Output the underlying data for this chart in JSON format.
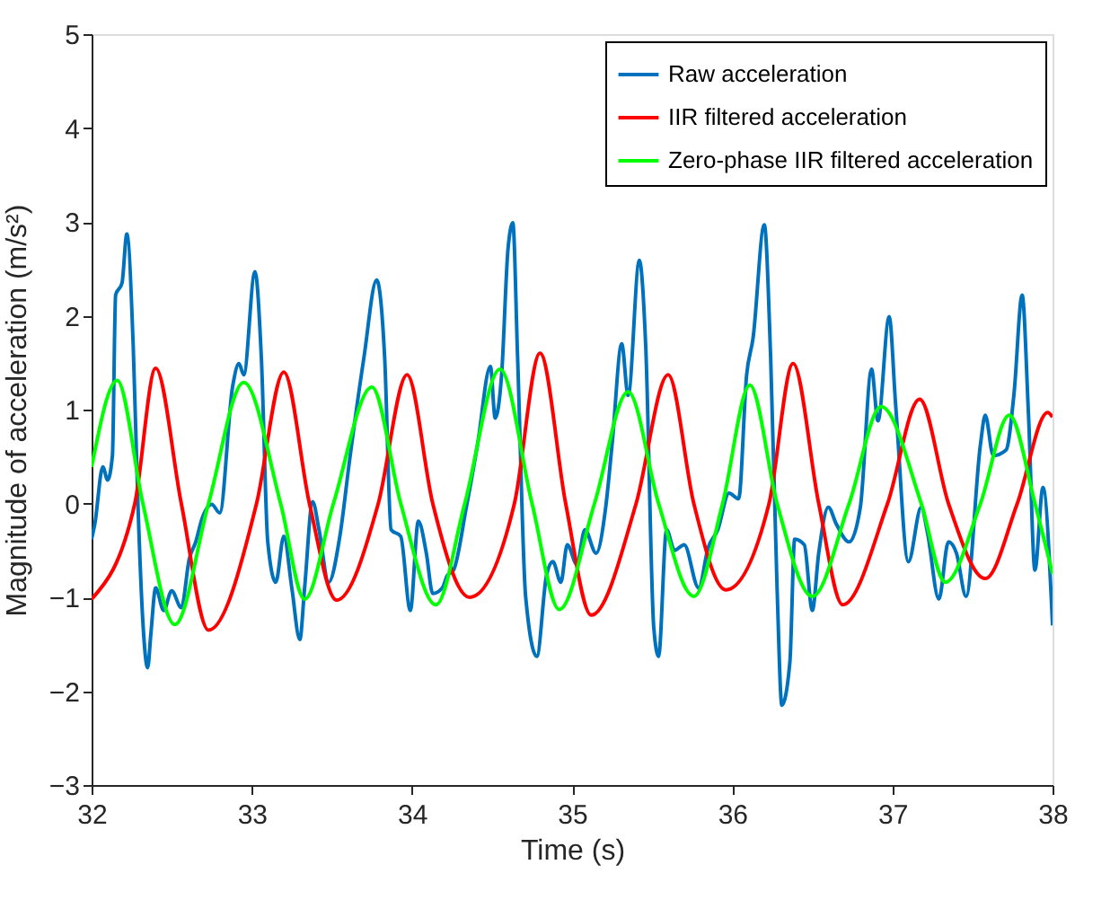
{
  "chart_data": {
    "type": "line",
    "xlabel": "Time (s)",
    "ylabel": "Magnitude of acceleration (m/s²)",
    "xlim": [
      32,
      38
    ],
    "xticks": [
      32,
      33,
      34,
      35,
      36,
      37,
      38
    ],
    "ylim": [
      -3,
      5
    ],
    "yticks": [
      -3,
      -2,
      -1,
      0,
      1,
      2,
      3,
      4,
      5
    ],
    "grid": false,
    "legend": "top right",
    "marker": "none",
    "line_style": "solid",
    "series": [
      {
        "name": "Raw acceleration",
        "color": "#0072bd",
        "x": [
          32.0,
          32.02,
          32.07,
          32.1,
          32.13,
          32.15,
          32.19,
          32.22,
          32.26,
          32.29,
          32.32,
          32.35,
          32.37,
          32.4,
          32.45,
          32.5,
          32.56,
          32.61,
          32.65,
          32.69,
          32.75,
          32.8,
          32.88,
          32.92,
          32.95,
          33.02,
          33.06,
          33.1,
          33.15,
          33.2,
          33.25,
          33.3,
          33.33,
          33.38,
          33.42,
          33.48,
          33.55,
          33.61,
          33.7,
          33.78,
          33.83,
          33.87,
          33.93,
          33.99,
          34.04,
          34.09,
          34.13,
          34.19,
          34.22,
          34.26,
          34.34,
          34.41,
          34.49,
          34.52,
          34.56,
          34.6,
          34.63,
          34.66,
          34.71,
          34.78,
          34.84,
          34.88,
          34.93,
          34.97,
          35.03,
          35.08,
          35.15,
          35.21,
          35.25,
          35.31,
          35.35,
          35.42,
          35.46,
          35.51,
          35.54,
          35.59,
          35.64,
          35.7,
          35.79,
          35.85,
          35.91,
          35.98,
          36.04,
          36.09,
          36.13,
          36.2,
          36.24,
          36.28,
          36.31,
          36.36,
          36.39,
          36.45,
          36.5,
          36.54,
          36.6,
          36.65,
          36.73,
          36.8,
          36.87,
          36.91,
          36.98,
          37.02,
          37.1,
          37.18,
          37.22,
          37.29,
          37.35,
          37.4,
          37.46,
          37.55,
          37.58,
          37.63,
          37.71,
          37.76,
          37.81,
          37.85,
          37.89,
          37.94,
          38.0
        ],
        "values": [
          -0.38,
          -0.22,
          0.39,
          0.25,
          0.51,
          2.22,
          2.35,
          2.87,
          1.67,
          -0.04,
          -1.26,
          -1.75,
          -1.39,
          -0.9,
          -1.14,
          -0.93,
          -1.11,
          -0.59,
          -0.41,
          -0.16,
          -0.01,
          -0.1,
          1.24,
          1.49,
          1.37,
          2.47,
          1.55,
          -0.41,
          -0.84,
          -0.35,
          -0.9,
          -1.45,
          -0.9,
          0.02,
          -0.28,
          -0.84,
          -0.35,
          0.45,
          1.55,
          2.38,
          1.55,
          -0.28,
          -0.35,
          -1.14,
          -0.19,
          -0.53,
          -0.96,
          -0.9,
          -0.77,
          -0.71,
          -0.04,
          0.63,
          1.46,
          0.91,
          1.37,
          2.71,
          2.99,
          1.55,
          -0.99,
          -1.63,
          -0.77,
          -0.62,
          -0.84,
          -0.44,
          -0.65,
          -0.28,
          -0.53,
          -0.04,
          0.63,
          1.7,
          1.15,
          2.59,
          1.67,
          -1.32,
          -1.63,
          -0.28,
          -0.5,
          -0.44,
          -0.9,
          -0.47,
          -0.28,
          0.11,
          0.05,
          1.37,
          1.76,
          2.97,
          1.55,
          -0.9,
          -2.15,
          -1.69,
          -0.38,
          -0.44,
          -1.14,
          -0.53,
          -0.04,
          -0.22,
          -0.41,
          -0.04,
          1.43,
          0.88,
          1.99,
          1.06,
          -0.62,
          -0.04,
          -0.32,
          -1.02,
          -0.41,
          -0.53,
          -0.99,
          0.63,
          0.94,
          0.51,
          0.57,
          1.18,
          2.22,
          0.94,
          -0.71,
          0.17,
          -1.3
        ]
      },
      {
        "name": "IIR filtered acceleration",
        "color": "#ff0000",
        "x": [
          32.0,
          32.27,
          32.4,
          32.56,
          32.73,
          33.03,
          33.2,
          33.36,
          33.53,
          33.79,
          33.97,
          34.13,
          34.36,
          34.64,
          34.8,
          34.96,
          35.12,
          35.4,
          35.6,
          35.76,
          35.96,
          36.23,
          36.38,
          36.54,
          36.69,
          36.97,
          37.17,
          37.35,
          37.58,
          37.78,
          37.97,
          38.0
        ],
        "values": [
          -1.02,
          0.0,
          1.44,
          0.0,
          -1.35,
          0.0,
          1.4,
          0.0,
          -1.03,
          0.0,
          1.37,
          0.0,
          -1.0,
          0.0,
          1.6,
          0.0,
          -1.19,
          0.0,
          1.37,
          0.0,
          -0.92,
          0.0,
          1.49,
          0.0,
          -1.08,
          0.0,
          1.11,
          0.0,
          -0.8,
          0.0,
          0.97,
          0.92
        ]
      },
      {
        "name": "Zero-phase IIR filtered acceleration",
        "color": "#00ff00",
        "x": [
          32.0,
          32.16,
          32.32,
          32.52,
          32.73,
          32.95,
          33.18,
          33.33,
          33.51,
          33.75,
          33.93,
          34.15,
          34.33,
          34.55,
          34.75,
          34.92,
          35.14,
          35.35,
          35.54,
          35.76,
          35.94,
          36.11,
          36.28,
          36.5,
          36.73,
          36.93,
          37.18,
          37.33,
          37.55,
          37.73,
          37.89,
          38.0
        ],
        "values": [
          0.39,
          1.31,
          0.0,
          -1.29,
          0.0,
          1.29,
          0.0,
          -1.02,
          0.0,
          1.24,
          0.0,
          -1.08,
          0.0,
          1.43,
          0.0,
          -1.13,
          0.0,
          1.19,
          0.0,
          -0.99,
          0.0,
          1.26,
          0.0,
          -0.99,
          0.0,
          1.03,
          0.0,
          -0.84,
          0.0,
          0.94,
          0.0,
          -0.75
        ]
      }
    ]
  }
}
